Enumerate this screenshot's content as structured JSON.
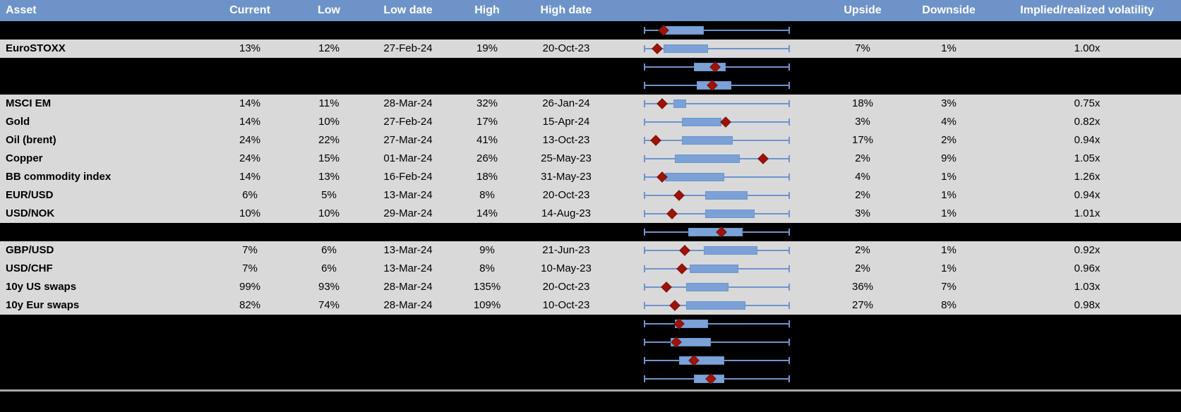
{
  "header": {
    "columns": [
      "Asset",
      "Current",
      "Low",
      "Low date",
      "High",
      "High date",
      "Upside",
      "Downside",
      "Implied/realized volatility"
    ]
  },
  "colors": {
    "header_bg": "#6d93c9",
    "header_text": "#ffffff",
    "data_row_bg": "#d9d9d9",
    "hidden_row_bg": "#000000",
    "whisker_blue": "#6e94cc",
    "box_blue": "#7ba1d6",
    "box_border_blue": "#6b95cd",
    "marker_red": "#9c1409",
    "marker_border_red": "#7e100a",
    "divider_gray": "#a6a6a6"
  },
  "chart_data": {
    "type": "boxplot",
    "legend_position": "none",
    "x_range_normalized": [
      0,
      1
    ],
    "rows": [
      {
        "type": "hidden",
        "box": {
          "q1": 0.14,
          "q3": 0.41,
          "marker": 0.13
        }
      },
      {
        "type": "data",
        "label": "EuroSTOXX",
        "current": "13%",
        "low": "12%",
        "low_date": "27-Feb-24",
        "high": "19%",
        "high_date": "20-Oct-23",
        "upside": "7%",
        "downside": "1%",
        "implied_realized": "1.00x",
        "box": {
          "q1": 0.13,
          "q3": 0.44,
          "marker": 0.09
        }
      },
      {
        "type": "hidden",
        "box": {
          "q1": 0.34,
          "q3": 0.56,
          "marker": 0.49
        }
      },
      {
        "type": "hidden",
        "box": {
          "q1": 0.36,
          "q3": 0.6,
          "marker": 0.47
        }
      },
      {
        "type": "data",
        "label": "MSCI EM",
        "current": "14%",
        "low": "11%",
        "low_date": "28-Mar-24",
        "high": "32%",
        "high_date": "26-Jan-24",
        "upside": "18%",
        "downside": "3%",
        "implied_realized": "0.75x",
        "box": {
          "q1": 0.2,
          "q3": 0.29,
          "marker": 0.12
        }
      },
      {
        "type": "data",
        "label": "Gold",
        "current": "14%",
        "low": "10%",
        "low_date": "27-Feb-24",
        "high": "17%",
        "high_date": "15-Apr-24",
        "upside": "3%",
        "downside": "4%",
        "implied_realized": "0.82x",
        "box": {
          "q1": 0.26,
          "q3": 0.53,
          "marker": 0.56
        }
      },
      {
        "type": "data",
        "label": "Oil (brent)",
        "current": "24%",
        "low": "22%",
        "low_date": "27-Mar-24",
        "high": "41%",
        "high_date": "13-Oct-23",
        "upside": "17%",
        "downside": "2%",
        "implied_realized": "0.94x",
        "box": {
          "q1": 0.26,
          "q3": 0.61,
          "marker": 0.08
        }
      },
      {
        "type": "data",
        "label": "Copper",
        "current": "24%",
        "low": "15%",
        "low_date": "01-Mar-24",
        "high": "26%",
        "high_date": "25-May-23",
        "upside": "2%",
        "downside": "9%",
        "implied_realized": "1.05x",
        "box": {
          "q1": 0.21,
          "q3": 0.66,
          "marker": 0.82
        }
      },
      {
        "type": "data",
        "label": "BB commodity index",
        "current": "14%",
        "low": "13%",
        "low_date": "16-Feb-24",
        "high": "18%",
        "high_date": "31-May-23",
        "upside": "4%",
        "downside": "1%",
        "implied_realized": "1.26x",
        "box": {
          "q1": 0.14,
          "q3": 0.55,
          "marker": 0.12
        }
      },
      {
        "type": "data",
        "label": "EUR/USD",
        "current": "6%",
        "low": "5%",
        "low_date": "13-Mar-24",
        "high": "8%",
        "high_date": "20-Oct-23",
        "upside": "2%",
        "downside": "1%",
        "implied_realized": "0.94x",
        "box": {
          "q1": 0.42,
          "q3": 0.71,
          "marker": 0.24
        }
      },
      {
        "type": "data",
        "label": "USD/NOK",
        "current": "10%",
        "low": "10%",
        "low_date": "29-Mar-24",
        "high": "14%",
        "high_date": "14-Aug-23",
        "upside": "3%",
        "downside": "1%",
        "implied_realized": "1.01x",
        "box": {
          "q1": 0.42,
          "q3": 0.76,
          "marker": 0.19
        }
      },
      {
        "type": "hidden",
        "box": {
          "q1": 0.3,
          "q3": 0.68,
          "marker": 0.53
        }
      },
      {
        "type": "data",
        "label": "GBP/USD",
        "current": "7%",
        "low": "6%",
        "low_date": "13-Mar-24",
        "high": "9%",
        "high_date": "21-Jun-23",
        "upside": "2%",
        "downside": "1%",
        "implied_realized": "0.92x",
        "box": {
          "q1": 0.41,
          "q3": 0.78,
          "marker": 0.28
        }
      },
      {
        "type": "data",
        "label": "USD/CHF",
        "current": "7%",
        "low": "6%",
        "low_date": "13-Mar-24",
        "high": "8%",
        "high_date": "10-May-23",
        "upside": "2%",
        "downside": "1%",
        "implied_realized": "0.96x",
        "box": {
          "q1": 0.31,
          "q3": 0.65,
          "marker": 0.26
        }
      },
      {
        "type": "data",
        "label": "10y US swaps",
        "current": "99%",
        "low": "93%",
        "low_date": "28-Mar-24",
        "high": "135%",
        "high_date": "20-Oct-23",
        "upside": "36%",
        "downside": "7%",
        "implied_realized": "1.03x",
        "box": {
          "q1": 0.29,
          "q3": 0.58,
          "marker": 0.15
        }
      },
      {
        "type": "data",
        "label": "10y Eur swaps",
        "current": "82%",
        "low": "74%",
        "low_date": "28-Mar-24",
        "high": "109%",
        "high_date": "10-Oct-23",
        "upside": "27%",
        "downside": "8%",
        "implied_realized": "0.98x",
        "box": {
          "q1": 0.29,
          "q3": 0.7,
          "marker": 0.21
        }
      },
      {
        "type": "hidden",
        "box": {
          "q1": 0.21,
          "q3": 0.44,
          "marker": 0.24
        }
      },
      {
        "type": "hidden",
        "box": {
          "q1": 0.18,
          "q3": 0.46,
          "marker": 0.22
        }
      },
      {
        "type": "hidden",
        "box": {
          "q1": 0.24,
          "q3": 0.55,
          "marker": 0.34
        }
      },
      {
        "type": "hidden",
        "box": {
          "q1": 0.34,
          "q3": 0.55,
          "marker": 0.46
        }
      }
    ]
  }
}
